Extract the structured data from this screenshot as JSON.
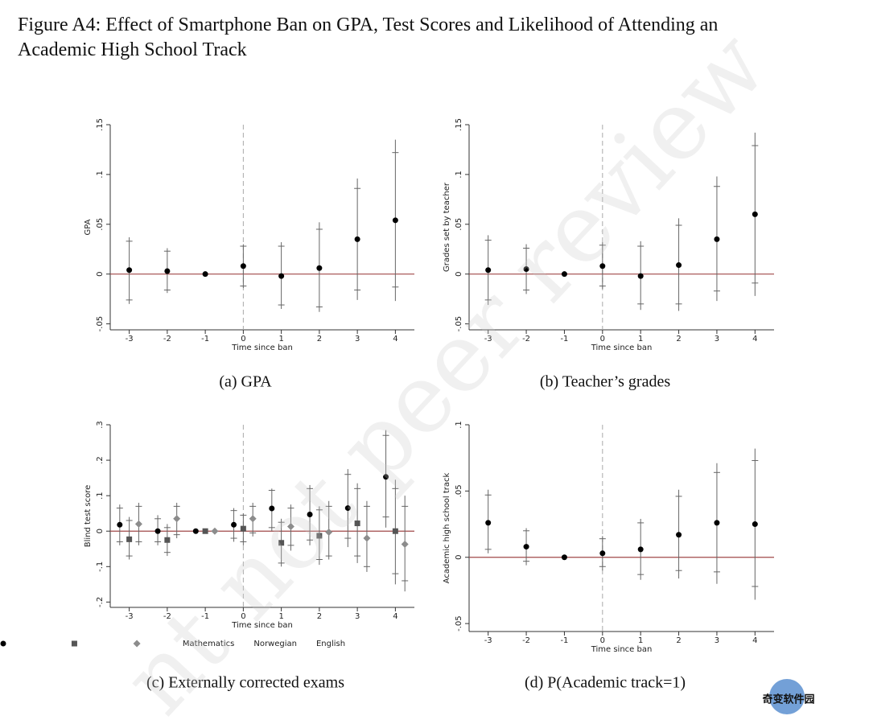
{
  "figure": {
    "title_line1": "Figure A4: Effect of Smartphone Ban on GPA, Test Scores and Likelihood of Attending an",
    "title_line2": "Academic High School Track"
  },
  "chart_data": [
    {
      "type": "scatter",
      "caption": "(a) GPA",
      "x_label": "Time since ban",
      "y_label": "GPA",
      "xlim": [
        -3.5,
        4.5
      ],
      "xticks": [
        -3,
        -2,
        -1,
        0,
        1,
        2,
        3,
        4
      ],
      "ylim": [
        -0.056,
        0.15
      ],
      "yticks": [
        {
          "value": -0.05,
          "label": "-.05"
        },
        0,
        {
          "value": 0.05,
          "label": ".05"
        },
        {
          "value": 0.1,
          "label": ".1"
        },
        {
          "value": 0.15,
          "label": ".15"
        }
      ],
      "hline": 0,
      "vline": 0,
      "series": [
        {
          "color": "#000000",
          "marker": "circle",
          "x": [
            -3,
            -2,
            -1,
            0,
            1,
            2,
            3,
            4
          ],
          "values": [
            0.004,
            0.003,
            0,
            0.008,
            -0.002,
            0.006,
            0.035,
            0.054
          ],
          "low": [
            -0.03,
            -0.019,
            null,
            -0.014,
            -0.035,
            -0.038,
            -0.026,
            -0.027
          ],
          "high": [
            0.037,
            0.026,
            null,
            0.03,
            0.032,
            0.052,
            0.096,
            0.135
          ],
          "low_inner": [
            -0.026,
            -0.016,
            null,
            -0.012,
            -0.031,
            -0.033,
            -0.016,
            -0.013
          ],
          "high_inner": [
            0.033,
            0.023,
            null,
            0.028,
            0.028,
            0.045,
            0.086,
            0.122
          ]
        }
      ]
    },
    {
      "type": "scatter",
      "caption": "(b) Teacher’s grades",
      "x_label": "Time since ban",
      "y_label": "Grades set by teacher",
      "xlim": [
        -3.5,
        4.5
      ],
      "xticks": [
        -3,
        -2,
        -1,
        0,
        1,
        2,
        3,
        4
      ],
      "ylim": [
        -0.056,
        0.15
      ],
      "yticks": [
        {
          "value": -0.05,
          "label": "-.05"
        },
        0,
        {
          "value": 0.05,
          "label": ".05"
        },
        {
          "value": 0.1,
          "label": ".1"
        },
        {
          "value": 0.15,
          "label": ".15"
        }
      ],
      "hline": 0,
      "vline": 0,
      "series": [
        {
          "color": "#000000",
          "marker": "circle",
          "x": [
            -3,
            -2,
            -1,
            0,
            1,
            2,
            3,
            4
          ],
          "values": [
            0.004,
            0.005,
            0,
            0.008,
            -0.002,
            0.009,
            0.035,
            0.06
          ],
          "low": [
            -0.031,
            -0.02,
            null,
            -0.015,
            -0.036,
            -0.037,
            -0.027,
            -0.022
          ],
          "high": [
            0.039,
            0.03,
            null,
            0.032,
            0.033,
            0.056,
            0.098,
            0.142
          ],
          "low_inner": [
            -0.026,
            -0.016,
            null,
            -0.012,
            -0.03,
            -0.03,
            -0.017,
            -0.009
          ],
          "high_inner": [
            0.034,
            0.026,
            null,
            0.029,
            0.028,
            0.049,
            0.088,
            0.129
          ]
        }
      ]
    },
    {
      "type": "scatter",
      "caption": "(c) Externally corrected exams",
      "x_label": "Time since ban",
      "y_label": "Blind test score",
      "xlim": [
        -3.5,
        4.5
      ],
      "xticks": [
        -3,
        -2,
        -1,
        0,
        1,
        2,
        3,
        4
      ],
      "ylim": [
        -0.215,
        0.3
      ],
      "yticks": [
        {
          "value": -0.2,
          "label": "-.2"
        },
        {
          "value": -0.1,
          "label": "-.1"
        },
        0,
        {
          "value": 0.1,
          "label": ".1"
        },
        {
          "value": 0.2,
          "label": ".2"
        },
        {
          "value": 0.3,
          "label": ".3"
        }
      ],
      "hline": 0,
      "vline": 0,
      "legend": "bottom",
      "series": [
        {
          "name": "Mathematics",
          "color": "#000000",
          "marker": "circle",
          "x": [
            -3.25,
            -2.25,
            -1.25,
            -0.25,
            0.75,
            1.75,
            2.75,
            3.75
          ],
          "values": [
            0.018,
            0,
            0,
            0.018,
            0.064,
            0.047,
            0.065,
            0.153
          ],
          "low": [
            -0.04,
            -0.04,
            null,
            -0.03,
            0,
            -0.04,
            -0.045,
            0.01
          ],
          "high": [
            0.075,
            0.045,
            null,
            0.065,
            0.12,
            0.13,
            0.175,
            0.285
          ],
          "low_inner": [
            -0.03,
            -0.03,
            null,
            -0.02,
            0.01,
            -0.025,
            -0.02,
            0.04
          ],
          "high_inner": [
            0.065,
            0.035,
            null,
            0.058,
            0.115,
            0.12,
            0.16,
            0.27
          ]
        },
        {
          "name": "Norwegian",
          "color": "#555555",
          "marker": "square",
          "x": [
            -3,
            -2,
            -1,
            0,
            1,
            2,
            3,
            4
          ],
          "values": [
            -0.023,
            -0.025,
            0,
            0.007,
            -0.033,
            -0.013,
            0.022,
            0
          ],
          "low": [
            -0.08,
            -0.07,
            null,
            -0.04,
            -0.1,
            -0.095,
            -0.09,
            -0.15
          ],
          "high": [
            0.04,
            0.02,
            null,
            0.05,
            0.035,
            0.07,
            0.135,
            0.145
          ],
          "low_inner": [
            -0.07,
            -0.06,
            null,
            -0.03,
            -0.09,
            -0.08,
            -0.07,
            -0.12
          ],
          "high_inner": [
            0.03,
            0.01,
            null,
            0.045,
            0.025,
            0.06,
            0.12,
            0.12
          ]
        },
        {
          "name": "English",
          "color": "#8c8c8c",
          "marker": "diamond",
          "x": [
            -2.75,
            -1.75,
            -0.75,
            0.25,
            1.25,
            2.25,
            3.25,
            4.25
          ],
          "values": [
            0.02,
            0.035,
            0,
            0.035,
            0.013,
            -0.003,
            -0.02,
            -0.037
          ],
          "low": [
            -0.04,
            -0.02,
            null,
            -0.015,
            -0.055,
            -0.08,
            -0.115,
            -0.17
          ],
          "high": [
            0.08,
            0.08,
            null,
            0.08,
            0.075,
            0.085,
            0.085,
            0.1
          ],
          "low_inner": [
            -0.03,
            -0.01,
            null,
            -0.005,
            -0.04,
            -0.07,
            -0.1,
            -0.14
          ],
          "high_inner": [
            0.07,
            0.07,
            null,
            0.07,
            0.065,
            0.07,
            0.07,
            0.07
          ]
        }
      ]
    },
    {
      "type": "scatter",
      "caption": "(d) P(Academic track=1)",
      "x_label": "Time since ban",
      "y_label": "Academic high school track",
      "xlim": [
        -3.5,
        4.5
      ],
      "xticks": [
        -3,
        -2,
        -1,
        0,
        1,
        2,
        3,
        4
      ],
      "ylim": [
        -0.056,
        0.1
      ],
      "yticks": [
        {
          "value": -0.05,
          "label": "-.05"
        },
        0,
        {
          "value": 0.05,
          "label": ".05"
        },
        {
          "value": 0.1,
          "label": ".1"
        }
      ],
      "hline": 0,
      "vline": 0,
      "series": [
        {
          "color": "#000000",
          "marker": "circle",
          "x": [
            -3,
            -2,
            -1,
            0,
            1,
            2,
            3,
            4
          ],
          "values": [
            0.026,
            0.008,
            0,
            0.003,
            0.006,
            0.017,
            0.026,
            0.025
          ],
          "low": [
            0.003,
            -0.006,
            null,
            -0.01,
            -0.017,
            -0.016,
            -0.02,
            -0.032
          ],
          "high": [
            0.051,
            0.022,
            null,
            0.016,
            0.029,
            0.051,
            0.071,
            0.082
          ],
          "low_inner": [
            0.006,
            -0.003,
            null,
            -0.007,
            -0.013,
            -0.01,
            -0.011,
            -0.022
          ],
          "high_inner": [
            0.047,
            0.02,
            null,
            0.014,
            0.026,
            0.046,
            0.064,
            0.073
          ]
        }
      ]
    }
  ],
  "overlay": {
    "watermark": "nt not peer review",
    "logo": "奇变软件园"
  }
}
